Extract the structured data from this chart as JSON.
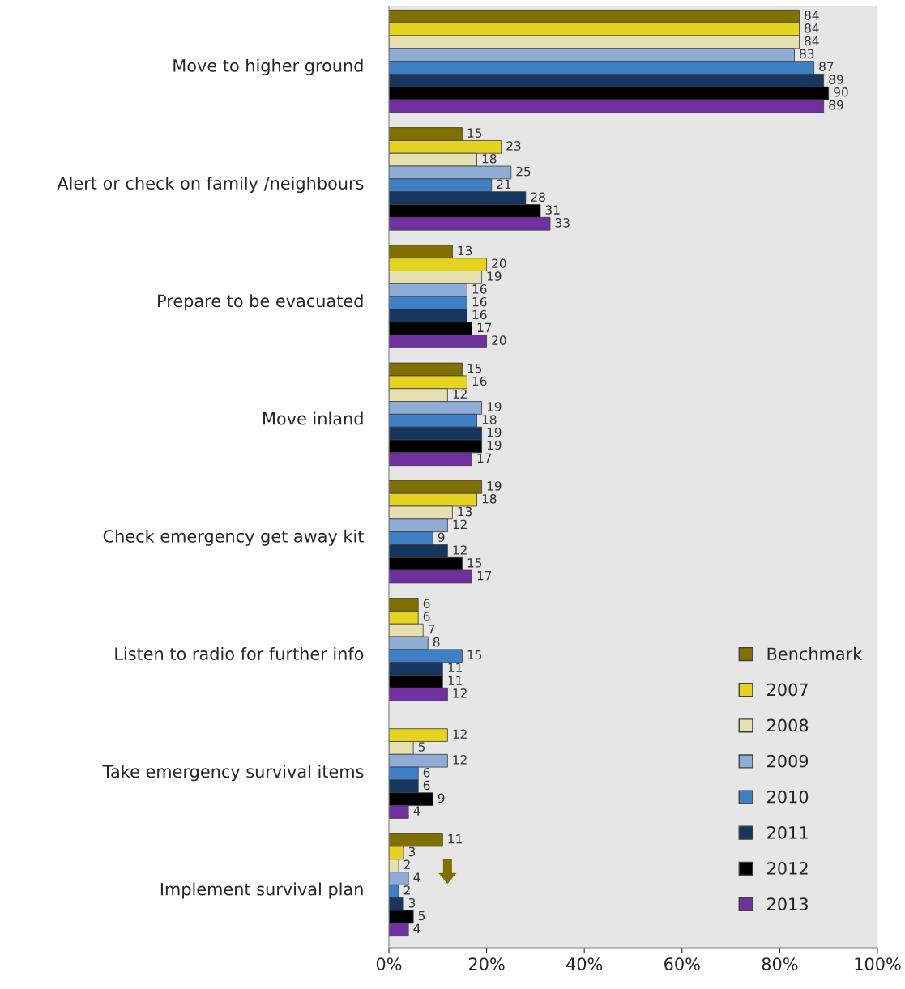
{
  "chart_data": {
    "type": "bar",
    "orientation": "horizontal",
    "categories": [
      "Move to higher ground",
      "Alert or check on family /neighbours",
      "Prepare to be evacuated",
      "Move inland",
      "Check emergency get away kit",
      "Listen to radio for further info",
      "Take emergency survival items",
      "Implement survival plan"
    ],
    "series": [
      {
        "name": "Benchmark",
        "color": "#807000",
        "values": [
          84,
          15,
          13,
          15,
          19,
          6,
          null,
          11
        ]
      },
      {
        "name": "2007",
        "color": "#e5d31f",
        "values": [
          84,
          23,
          20,
          16,
          18,
          6,
          12,
          3
        ]
      },
      {
        "name": "2008",
        "color": "#e6e0b0",
        "values": [
          84,
          18,
          19,
          12,
          13,
          7,
          5,
          2
        ]
      },
      {
        "name": "2009",
        "color": "#8eacd4",
        "values": [
          83,
          25,
          16,
          19,
          12,
          8,
          12,
          4
        ]
      },
      {
        "name": "2010",
        "color": "#3f7fc6",
        "values": [
          87,
          21,
          16,
          18,
          9,
          15,
          6,
          2
        ]
      },
      {
        "name": "2011",
        "color": "#14365f",
        "values": [
          89,
          28,
          16,
          19,
          12,
          11,
          6,
          3
        ]
      },
      {
        "name": "2012",
        "color": "#000000",
        "values": [
          90,
          31,
          17,
          19,
          15,
          11,
          9,
          5
        ]
      },
      {
        "name": "2013",
        "color": "#7030a0",
        "values": [
          89,
          33,
          20,
          17,
          17,
          12,
          4,
          4
        ]
      }
    ],
    "xlim": [
      0,
      100
    ],
    "xticks": [
      {
        "value": 0,
        "label": "0%"
      },
      {
        "value": 20,
        "label": "20%"
      },
      {
        "value": 40,
        "label": "40%"
      },
      {
        "value": 60,
        "label": "60%"
      },
      {
        "value": 80,
        "label": "80%"
      },
      {
        "value": 100,
        "label": "100%"
      }
    ],
    "data_labels": true,
    "legend": "bottom right",
    "grid": false
  }
}
